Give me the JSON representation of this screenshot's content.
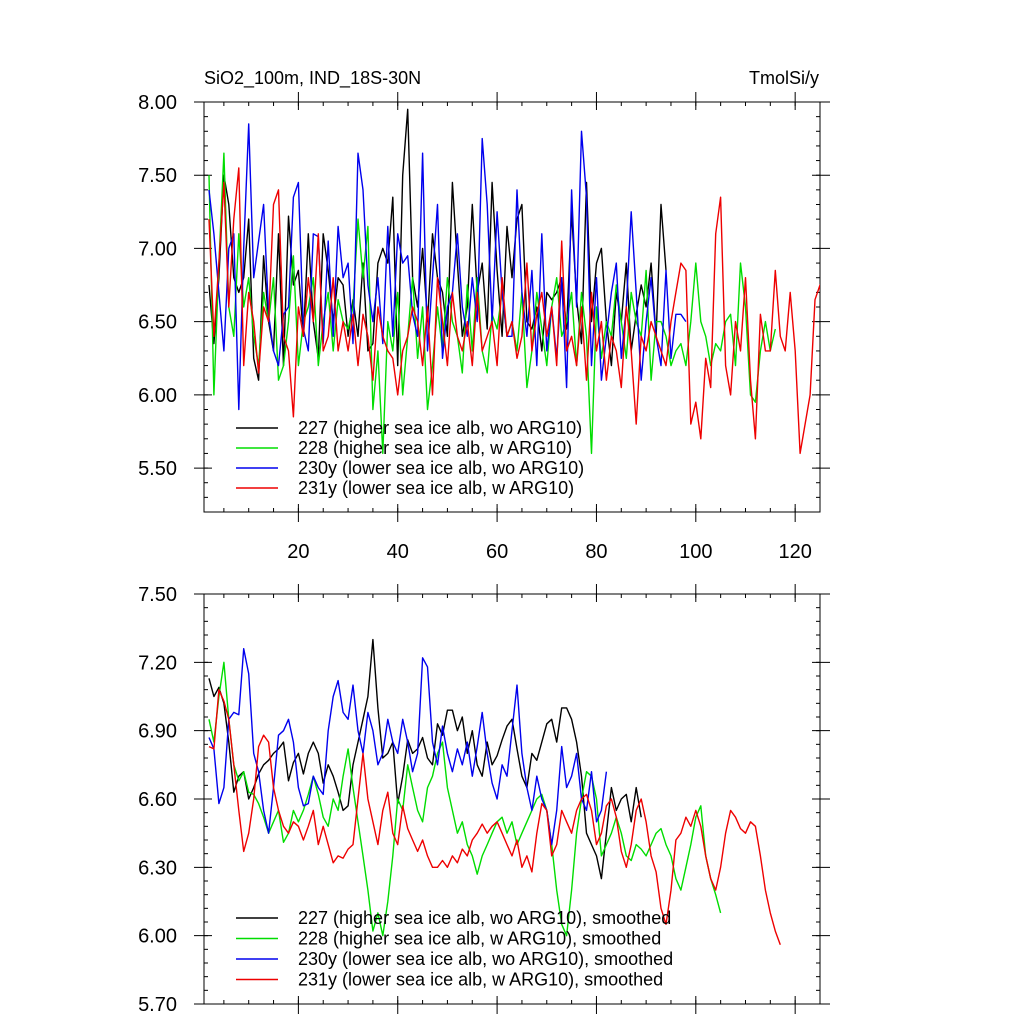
{
  "figure": {
    "title_left": "SiO2_100m, IND_18S-30N",
    "title_right": "TmolSi/y"
  },
  "chart_data": [
    {
      "type": "line",
      "panel": "top",
      "title": "SiO2_100m, IND_18S-30N",
      "units": "TmolSi/y",
      "xlim": [
        1,
        125
      ],
      "ylim": [
        5.2,
        8.0
      ],
      "x_ticks": [
        20,
        40,
        60,
        80,
        100,
        120
      ],
      "y_ticks": [
        5.5,
        6.0,
        6.5,
        7.0,
        7.5,
        8.0
      ],
      "y_tick_labels": [
        "5.50",
        "6.00",
        "6.50",
        "7.00",
        "7.50",
        "8.00"
      ],
      "x_tick_labels": [
        "20",
        "40",
        "60",
        "80",
        "100",
        "120"
      ],
      "legend": [
        "227 (higher sea ice alb, wo ARG10)",
        "228 (higher sea ice alb, w ARG10)",
        "230y (lower sea ice alb, wo ARG10)",
        "231y (lower sea ice alb, w ARG10)"
      ],
      "series": [
        {
          "name": "227",
          "color": "#000000",
          "values": [
            6.75,
            6.35,
            6.8,
            7.5,
            7.3,
            6.8,
            6.7,
            6.8,
            7.2,
            6.25,
            6.1,
            6.95,
            6.5,
            6.3,
            7.1,
            6.2,
            7.22,
            6.75,
            6.85,
            6.4,
            7.1,
            6.5,
            6.25,
            7.1,
            6.85,
            6.5,
            6.8,
            6.75,
            6.4,
            6.65,
            6.4,
            6.9,
            6.3,
            6.35,
            6.9,
            7.0,
            6.9,
            7.35,
            6.2,
            7.5,
            7.95,
            6.8,
            6.6,
            7.0,
            6.5,
            7.1,
            6.8,
            6.7,
            6.4,
            7.45,
            6.9,
            6.4,
            6.6,
            7.3,
            6.7,
            6.9,
            6.45,
            7.45,
            6.85,
            6.4,
            7.15,
            6.8,
            7.2,
            7.3,
            6.5,
            6.45,
            6.6,
            6.3,
            6.7,
            6.65,
            6.7,
            6.8,
            6.45,
            7.25,
            6.65,
            6.35,
            7.45,
            6.5,
            6.9,
            7.0,
            6.5,
            6.2,
            6.7,
            6.5,
            6.9,
            6.3,
            6.55,
            6.75,
            6.6,
            6.9,
            6.4,
            7.3,
            6.85
          ]
        },
        {
          "name": "228",
          "color": "#00dd00",
          "values": [
            7.5,
            6.0,
            6.9,
            7.65,
            6.6,
            6.4,
            7.1,
            6.6,
            6.8,
            6.4,
            6.2,
            6.7,
            6.5,
            6.8,
            6.1,
            6.2,
            6.5,
            6.95,
            6.2,
            6.5,
            6.6,
            6.8,
            6.2,
            6.5,
            6.7,
            6.3,
            6.65,
            6.5,
            6.45,
            6.6,
            7.2,
            6.8,
            7.15,
            5.9,
            6.3,
            5.6,
            6.5,
            6.3,
            6.7,
            6.0,
            6.4,
            6.8,
            6.25,
            6.6,
            5.9,
            6.2,
            6.6,
            6.3,
            6.8,
            6.5,
            6.4,
            6.15,
            6.75,
            6.3,
            6.8,
            6.3,
            6.15,
            6.55,
            6.45,
            6.7,
            6.4,
            6.5,
            6.3,
            6.7,
            6.05,
            6.3,
            6.7,
            6.45,
            6.2,
            6.6,
            6.8,
            6.4,
            6.5,
            6.7,
            6.2,
            6.7,
            6.4,
            5.6,
            6.6,
            6.25,
            6.5,
            6.4,
            6.75,
            6.5,
            6.25,
            6.7,
            6.5,
            6.4,
            6.85,
            6.1,
            6.5,
            6.5,
            6.4,
            6.2,
            6.3,
            6.35,
            6.2,
            6.5,
            6.9,
            6.5,
            6.4,
            6.2,
            6.35,
            6.3,
            6.5,
            6.55,
            6.2,
            6.9,
            6.6,
            6.0,
            5.95,
            6.3,
            6.5,
            6.3,
            6.45
          ]
        },
        {
          "name": "230y",
          "color": "#0000ee",
          "values": [
            7.4,
            7.1,
            6.7,
            6.3,
            7.0,
            7.1,
            5.9,
            7.0,
            7.85,
            6.8,
            7.05,
            7.3,
            6.55,
            6.3,
            6.2,
            6.55,
            6.6,
            7.35,
            7.45,
            6.45,
            6.3,
            7.1,
            7.08,
            6.35,
            7.05,
            6.4,
            7.15,
            6.8,
            6.9,
            6.35,
            7.65,
            7.4,
            6.75,
            6.5,
            6.8,
            6.35,
            7.15,
            6.4,
            7.1,
            6.9,
            6.95,
            6.55,
            6.4,
            7.65,
            6.3,
            6.8,
            7.3,
            6.25,
            6.6,
            6.7,
            7.1,
            6.6,
            6.4,
            6.8,
            6.5,
            7.75,
            7.3,
            6.5,
            7.25,
            6.7,
            6.4,
            6.4,
            7.4,
            6.7,
            6.4,
            6.85,
            6.2,
            7.1,
            6.3,
            6.6,
            6.25,
            6.8,
            6.05,
            7.4,
            6.6,
            7.8,
            7.35,
            6.2,
            6.8,
            6.1,
            6.4,
            6.7,
            6.9,
            6.25,
            6.6,
            7.25,
            6.7,
            6.1,
            6.5,
            6.8,
            6.4,
            6.2,
            6.85,
            6.25,
            6.55,
            6.55,
            6.5
          ]
        },
        {
          "name": "231y",
          "color": "#ee0000",
          "values": [
            7.2,
            6.4,
            6.9,
            7.45,
            6.6,
            7.2,
            7.55,
            6.2,
            6.7,
            6.5,
            6.15,
            6.6,
            6.5,
            7.3,
            7.4,
            6.4,
            6.3,
            5.85,
            6.6,
            6.4,
            6.8,
            6.5,
            7.1,
            6.3,
            6.4,
            6.8,
            6.3,
            6.5,
            6.3,
            6.55,
            6.2,
            6.55,
            6.4,
            6.1,
            6.6,
            6.4,
            6.3,
            6.25,
            6.0,
            6.3,
            6.4,
            6.6,
            6.5,
            6.2,
            6.6,
            6.0,
            6.8,
            6.5,
            6.2,
            6.7,
            6.4,
            6.3,
            6.5,
            6.2,
            6.7,
            6.3,
            6.4,
            6.5,
            6.2,
            6.8,
            6.4,
            6.5,
            6.25,
            6.4,
            6.9,
            6.3,
            6.55,
            6.7,
            6.4,
            6.6,
            6.2,
            7.05,
            6.3,
            6.4,
            6.2,
            6.6,
            6.1,
            6.7,
            6.3,
            6.5,
            6.1,
            6.4,
            6.3,
            6.05,
            6.6,
            6.3,
            5.8,
            6.4,
            6.3,
            6.5,
            6.4,
            6.3,
            6.2,
            6.5,
            6.7,
            6.9,
            6.85,
            5.8,
            5.95,
            5.7,
            6.25,
            6.05,
            7.1,
            7.35,
            6.2,
            6.0,
            6.5,
            6.3,
            6.8,
            6.1,
            5.7,
            6.55,
            6.3,
            6.3,
            6.85,
            6.4,
            6.3,
            6.7,
            6.3,
            5.6,
            5.8,
            6.0,
            6.65,
            6.75,
            6.35
          ]
        }
      ]
    },
    {
      "type": "line",
      "panel": "bottom",
      "xlim": [
        1,
        125
      ],
      "ylim": [
        5.7,
        7.5
      ],
      "x_ticks": [
        20,
        40,
        60,
        80,
        100,
        120
      ],
      "y_ticks": [
        5.7,
        6.0,
        6.3,
        6.6,
        6.9,
        7.2,
        7.5
      ],
      "y_tick_labels": [
        "5.70",
        "6.00",
        "6.30",
        "6.60",
        "6.90",
        "7.20",
        "7.50"
      ],
      "legend": [
        "227 (higher sea ice alb, wo ARG10), smoothed",
        "228 (higher sea ice alb, w ARG10), smoothed",
        "230y (lower sea ice alb, wo ARG10), smoothed",
        "231y (lower sea ice alb, w ARG10), smoothed"
      ],
      "series": [
        {
          "name": "227 smoothed",
          "color": "#000000",
          "values": [
            7.13,
            7.05,
            7.09,
            7.02,
            6.85,
            6.63,
            6.7,
            6.72,
            6.6,
            6.65,
            6.71,
            6.75,
            6.77,
            6.8,
            6.82,
            6.85,
            6.68,
            6.76,
            6.8,
            6.71,
            6.8,
            6.85,
            6.8,
            6.67,
            6.75,
            6.7,
            6.63,
            6.55,
            6.57,
            6.75,
            6.85,
            6.95,
            7.05,
            7.3,
            7.0,
            6.78,
            6.8,
            6.85,
            6.58,
            6.7,
            6.86,
            6.8,
            6.82,
            6.87,
            6.78,
            6.75,
            6.93,
            6.88,
            6.99,
            6.99,
            6.9,
            6.96,
            6.8,
            6.9,
            6.75,
            6.7,
            6.85,
            6.75,
            6.79,
            6.86,
            6.92,
            6.95,
            6.82,
            6.7,
            6.65,
            6.8,
            6.77,
            6.85,
            6.93,
            6.95,
            6.85,
            7.0,
            7.0,
            6.95,
            6.85,
            6.7,
            6.45,
            6.4,
            6.35,
            6.25,
            6.45,
            6.65,
            6.55,
            6.6,
            6.62,
            6.5,
            6.65,
            6.52
          ]
        },
        {
          "name": "228 smoothed",
          "color": "#00dd00",
          "values": [
            6.95,
            6.85,
            7.05,
            7.2,
            6.95,
            6.75,
            6.68,
            6.72,
            6.63,
            6.62,
            6.58,
            6.52,
            6.45,
            6.5,
            6.55,
            6.41,
            6.45,
            6.55,
            6.5,
            6.55,
            6.62,
            6.7,
            6.62,
            6.52,
            6.48,
            6.6,
            6.55,
            6.7,
            6.82,
            6.65,
            6.5,
            6.35,
            6.2,
            6.02,
            6.1,
            6.0,
            6.15,
            6.35,
            6.6,
            6.55,
            6.75,
            6.65,
            6.55,
            6.5,
            6.65,
            6.7,
            6.8,
            6.85,
            6.65,
            6.55,
            6.45,
            6.5,
            6.4,
            6.35,
            6.27,
            6.35,
            6.4,
            6.45,
            6.5,
            6.52,
            6.45,
            6.5,
            6.4,
            6.45,
            6.5,
            6.55,
            6.6,
            6.62,
            6.55,
            6.4,
            6.2,
            6.05,
            6.0,
            6.2,
            6.45,
            6.6,
            6.72,
            6.7,
            6.6,
            6.35,
            6.4,
            6.45,
            6.52,
            6.45,
            6.35,
            6.33,
            6.4,
            6.38,
            6.35,
            6.4,
            6.45,
            6.47,
            6.4,
            6.35,
            6.25,
            6.2,
            6.3,
            6.4,
            6.52,
            6.57,
            6.35,
            6.25,
            6.18,
            6.1
          ]
        },
        {
          "name": "230y smoothed",
          "color": "#0000ee",
          "values": [
            6.87,
            6.82,
            6.58,
            6.65,
            6.95,
            6.98,
            6.97,
            7.26,
            7.15,
            6.8,
            6.72,
            6.55,
            6.45,
            6.65,
            6.88,
            6.9,
            6.95,
            6.85,
            6.65,
            6.57,
            6.58,
            6.7,
            6.65,
            6.62,
            6.9,
            7.05,
            7.12,
            6.98,
            6.95,
            7.1,
            6.9,
            6.8,
            6.98,
            6.9,
            6.75,
            6.8,
            6.95,
            6.85,
            6.8,
            6.95,
            6.85,
            6.72,
            6.8,
            7.22,
            7.18,
            6.85,
            6.75,
            6.92,
            6.8,
            6.72,
            6.82,
            6.75,
            6.85,
            6.7,
            6.83,
            6.98,
            6.8,
            6.67,
            6.6,
            6.75,
            6.7,
            6.9,
            7.1,
            6.8,
            6.65,
            6.55,
            6.7,
            6.6,
            6.55,
            6.4,
            6.55,
            6.83,
            6.65,
            6.7,
            6.8,
            6.6,
            6.55,
            6.72,
            6.5,
            6.55,
            6.72
          ]
        },
        {
          "name": "231y smoothed",
          "color": "#ee0000",
          "values": [
            6.83,
            6.82,
            7.08,
            7.03,
            6.95,
            6.75,
            6.55,
            6.37,
            6.45,
            6.6,
            6.83,
            6.88,
            6.85,
            6.65,
            6.55,
            6.48,
            6.45,
            6.5,
            6.48,
            6.42,
            6.48,
            6.55,
            6.4,
            6.48,
            6.4,
            6.32,
            6.35,
            6.34,
            6.38,
            6.4,
            6.6,
            6.8,
            6.6,
            6.5,
            6.4,
            6.55,
            6.63,
            6.45,
            6.4,
            6.57,
            6.47,
            6.42,
            6.37,
            6.42,
            6.35,
            6.3,
            6.3,
            6.33,
            6.3,
            6.35,
            6.32,
            6.38,
            6.35,
            6.42,
            6.45,
            6.49,
            6.45,
            6.48,
            6.5,
            6.45,
            6.4,
            6.35,
            6.42,
            6.3,
            6.35,
            6.28,
            6.45,
            6.58,
            6.55,
            6.35,
            6.4,
            6.55,
            6.5,
            6.45,
            6.55,
            6.6,
            6.62,
            6.55,
            6.4,
            6.45,
            6.57,
            6.6,
            6.52,
            6.37,
            6.3,
            6.4,
            6.55,
            6.6,
            6.5,
            6.35,
            6.28,
            6.12,
            6.05,
            6.2,
            6.42,
            6.45,
            6.52,
            6.48,
            6.55,
            6.48,
            6.35,
            6.25,
            6.2,
            6.3,
            6.45,
            6.55,
            6.52,
            6.47,
            6.45,
            6.5,
            6.48,
            6.35,
            6.2,
            6.1,
            6.02,
            5.96
          ]
        }
      ]
    }
  ]
}
